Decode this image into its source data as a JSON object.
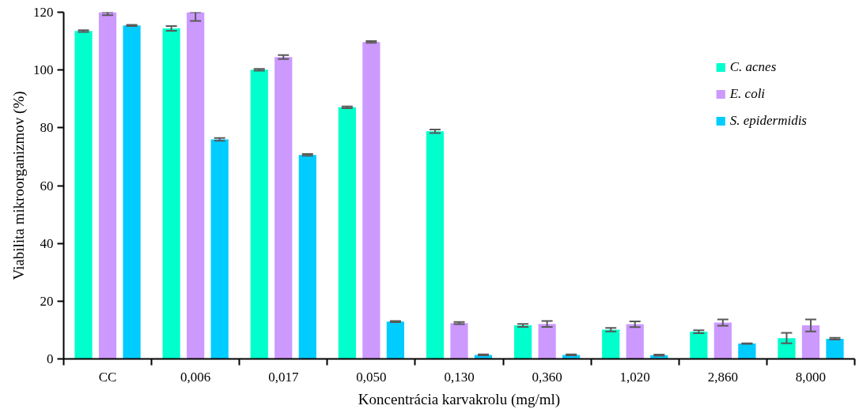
{
  "chart_data": {
    "type": "bar",
    "xlabel": "Koncentrácia karvakrolu (mg/ml)",
    "ylabel": "Viabilita mikroorganizmov (%)",
    "categories": [
      "CC",
      "0,006",
      "0,017",
      "0,050",
      "0,130",
      "0,360",
      "1,020",
      "2,860",
      "8,000"
    ],
    "series": [
      {
        "name": "C. acnes",
        "color": "#00ffcc",
        "values": [
          113.5,
          114.4,
          100.1,
          87.1,
          78.8,
          11.6,
          10.1,
          9.4,
          7.2
        ],
        "errors": [
          0.3,
          0.8,
          0.3,
          0.3,
          0.6,
          0.5,
          0.6,
          0.5,
          1.8
        ]
      },
      {
        "name": "E. coli",
        "color": "#cc99ff",
        "values": [
          120,
          120,
          104.5,
          109.7,
          12.4,
          12.1,
          12.0,
          12.6,
          11.6
        ],
        "errors": [
          [
            119,
            120
          ],
          [
            117,
            120
          ],
          0.7,
          0.3,
          0.4,
          1.0,
          1.0,
          1.1,
          2.1
        ]
      },
      {
        "name": "S. epidermidis",
        "color": "#00ccff",
        "values": [
          115.4,
          76.0,
          70.6,
          12.9,
          1.4,
          1.4,
          1.3,
          5.3,
          7.0
        ],
        "errors": [
          0.2,
          0.5,
          0.3,
          0.2,
          0.2,
          0.2,
          0.2,
          0.1,
          0.3
        ]
      }
    ],
    "ylim": [
      0,
      120
    ],
    "yticks": [
      0,
      20,
      40,
      60,
      80,
      100,
      120
    ],
    "grid": false,
    "legend": "top right"
  }
}
